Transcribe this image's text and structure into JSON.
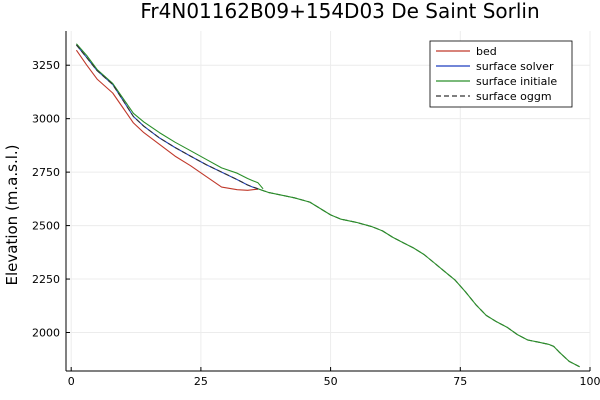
{
  "chart_data": {
    "type": "line",
    "title": "Fr4N01162B09+154D03 De Saint Sorlin",
    "xlabel": "",
    "ylabel": "Elevation (m.a.s.l.)",
    "xlim": [
      -1,
      100
    ],
    "ylim": [
      1820,
      3410
    ],
    "xticks": [
      0,
      25,
      50,
      75,
      100
    ],
    "yticks": [
      2000,
      2250,
      2500,
      2750,
      3000,
      3250
    ],
    "grid": true,
    "legend_position": "top-right",
    "series": [
      {
        "name": "bed",
        "color": "#c0392b",
        "dash": "solid",
        "x": [
          1,
          3,
          5,
          8,
          10,
          12,
          14,
          17,
          20,
          23,
          26,
          29,
          32,
          34,
          35,
          36
        ],
        "y": [
          3320,
          3250,
          3185,
          3120,
          3050,
          2980,
          2935,
          2880,
          2825,
          2780,
          2730,
          2680,
          2668,
          2665,
          2668,
          2670
        ]
      },
      {
        "name": "surface solver",
        "color": "#1f3fbf",
        "dash": "solid",
        "x": [
          1,
          3,
          5,
          8,
          10,
          12,
          14,
          17,
          20,
          23,
          26,
          29,
          32,
          34,
          35,
          36
        ],
        "y": [
          3345,
          3285,
          3225,
          3160,
          3085,
          3010,
          2965,
          2910,
          2865,
          2825,
          2785,
          2750,
          2715,
          2690,
          2680,
          2672
        ]
      },
      {
        "name": "surface initiale",
        "color": "#2a8f2a",
        "dash": "solid",
        "x": [
          1,
          3,
          5,
          8,
          10,
          12,
          14,
          17,
          20,
          23,
          26,
          29,
          32,
          34,
          35,
          36,
          37
        ],
        "y": [
          3350,
          3295,
          3230,
          3165,
          3095,
          3025,
          2985,
          2935,
          2890,
          2850,
          2810,
          2770,
          2745,
          2720,
          2710,
          2700,
          2672
        ]
      },
      {
        "name": "surface oggm",
        "color": "#333333",
        "dash": "dashed",
        "x": [
          1,
          3,
          5,
          8,
          10,
          12,
          14,
          17,
          20,
          23,
          26,
          29,
          32,
          34,
          36,
          38,
          40,
          43,
          46,
          48,
          50,
          52,
          55,
          58,
          60,
          62,
          64,
          66,
          68,
          70,
          72,
          74,
          76,
          78,
          80,
          82,
          84,
          86,
          88,
          90,
          92,
          93,
          94,
          96,
          98
        ],
        "y": [
          3345,
          3285,
          3225,
          3160,
          3085,
          3010,
          2965,
          2910,
          2865,
          2825,
          2785,
          2750,
          2715,
          2690,
          2672,
          2655,
          2645,
          2630,
          2610,
          2580,
          2550,
          2530,
          2515,
          2495,
          2475,
          2445,
          2420,
          2395,
          2365,
          2325,
          2285,
          2245,
          2190,
          2130,
          2080,
          2050,
          2025,
          1990,
          1965,
          1955,
          1945,
          1935,
          1910,
          1865,
          1840
        ]
      },
      {
        "name": "",
        "color": "#2a8f2a",
        "dash": "solid",
        "x": [
          36,
          38,
          40,
          43,
          46,
          48,
          50,
          52,
          55,
          58,
          60,
          62,
          64,
          66,
          68,
          70,
          72,
          74,
          76,
          78,
          80,
          82,
          84,
          86,
          88,
          90,
          92,
          93,
          94,
          96,
          98
        ],
        "y": [
          2672,
          2655,
          2645,
          2630,
          2610,
          2580,
          2550,
          2530,
          2515,
          2495,
          2475,
          2445,
          2420,
          2395,
          2365,
          2325,
          2285,
          2245,
          2190,
          2130,
          2080,
          2050,
          2025,
          1990,
          1965,
          1955,
          1945,
          1935,
          1910,
          1865,
          1840
        ]
      }
    ]
  }
}
